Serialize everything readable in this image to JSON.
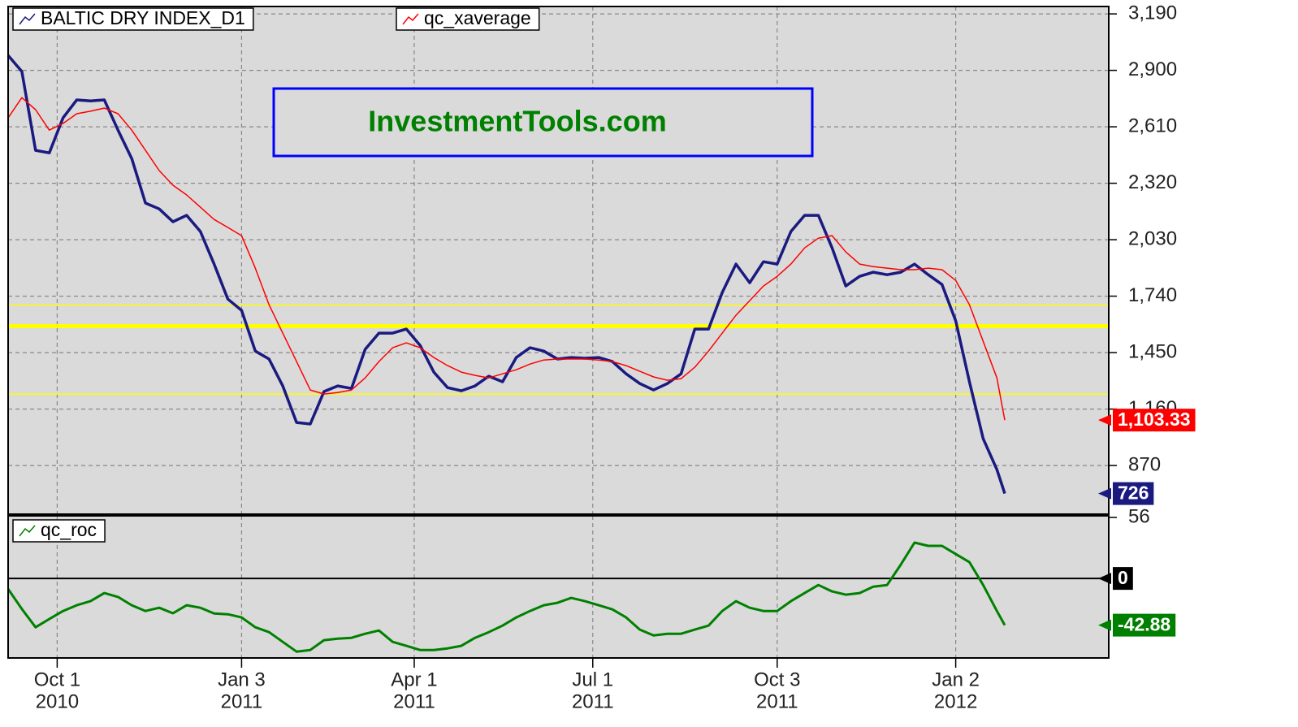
{
  "chart_data": [
    {
      "type": "line",
      "x": [
        "2010-09-06",
        "2010-09-13",
        "2010-09-20",
        "2010-09-27",
        "2010-10-04",
        "2010-10-11",
        "2010-10-18",
        "2010-10-25",
        "2010-11-01",
        "2010-11-08",
        "2010-11-15",
        "2010-11-22",
        "2010-11-29",
        "2010-12-06",
        "2010-12-13",
        "2010-12-20",
        "2010-12-27",
        "2011-01-03",
        "2011-01-10",
        "2011-01-17",
        "2011-01-24",
        "2011-01-31",
        "2011-02-07",
        "2011-02-14",
        "2011-02-21",
        "2011-02-28",
        "2011-03-07",
        "2011-03-14",
        "2011-03-21",
        "2011-03-28",
        "2011-04-04",
        "2011-04-11",
        "2011-04-18",
        "2011-04-25",
        "2011-05-02",
        "2011-05-09",
        "2011-05-16",
        "2011-05-23",
        "2011-05-30",
        "2011-06-06",
        "2011-06-13",
        "2011-06-20",
        "2011-06-27",
        "2011-07-04",
        "2011-07-11",
        "2011-07-18",
        "2011-07-25",
        "2011-08-01",
        "2011-08-08",
        "2011-08-15",
        "2011-08-22",
        "2011-08-29",
        "2011-09-05",
        "2011-09-12",
        "2011-09-19",
        "2011-09-26",
        "2011-10-03",
        "2011-10-10",
        "2011-10-17",
        "2011-10-24",
        "2011-10-31",
        "2011-11-07",
        "2011-11-14",
        "2011-11-21",
        "2011-11-28",
        "2011-12-05",
        "2011-12-12",
        "2011-12-19",
        "2011-12-26",
        "2012-01-02",
        "2012-01-09",
        "2012-01-16",
        "2012-01-23",
        "2012-01-27"
      ],
      "series": [
        {
          "name": "BALTIC DRY INDEX_D1",
          "color": "#1a1a80",
          "width": 3.5,
          "values": [
            2977,
            2894,
            2489,
            2476,
            2656,
            2748,
            2743,
            2748,
            2593,
            2447,
            2218,
            2188,
            2122,
            2155,
            2072,
            1905,
            1725,
            1667,
            1458,
            1417,
            1279,
            1091,
            1083,
            1250,
            1279,
            1266,
            1467,
            1550,
            1550,
            1571,
            1487,
            1350,
            1270,
            1254,
            1279,
            1329,
            1300,
            1425,
            1475,
            1458,
            1417,
            1425,
            1421,
            1425,
            1404,
            1341,
            1291,
            1258,
            1291,
            1341,
            1571,
            1571,
            1759,
            1905,
            1809,
            1917,
            1905,
            2072,
            2155,
            2155,
            1988,
            1792,
            1842,
            1863,
            1850,
            1863,
            1905,
            1850,
            1800,
            1613,
            1300,
            1008,
            849,
            726
          ]
        },
        {
          "name": "qc_xaverage",
          "color": "#ff0000",
          "width": 1.5,
          "last_label": "1,103.33",
          "values": [
            2656,
            2760,
            2698,
            2593,
            2627,
            2677,
            2690,
            2706,
            2677,
            2593,
            2489,
            2385,
            2310,
            2260,
            2197,
            2134,
            2093,
            2051,
            1884,
            1696,
            1550,
            1404,
            1258,
            1237,
            1245,
            1258,
            1320,
            1404,
            1475,
            1500,
            1475,
            1425,
            1383,
            1350,
            1333,
            1320,
            1341,
            1362,
            1391,
            1412,
            1417,
            1417,
            1417,
            1412,
            1404,
            1383,
            1354,
            1325,
            1308,
            1316,
            1375,
            1458,
            1550,
            1642,
            1717,
            1792,
            1842,
            1905,
            1988,
            2038,
            2051,
            1967,
            1905,
            1892,
            1884,
            1876,
            1876,
            1884,
            1876,
            1821,
            1696,
            1508,
            1320,
            1103.33
          ]
        }
      ],
      "xlim": [
        "2010-09-06",
        "2012-03-20"
      ],
      "xticks": [
        {
          "value": "2010-10-01",
          "label": [
            "Oct 1",
            "2010"
          ]
        },
        {
          "value": "2011-01-03",
          "label": [
            "Jan 3",
            "2011"
          ]
        },
        {
          "value": "2011-04-01",
          "label": [
            "Apr 1",
            "2011"
          ]
        },
        {
          "value": "2011-07-01",
          "label": [
            "Jul 1",
            "2011"
          ]
        },
        {
          "value": "2011-10-03",
          "label": [
            "Oct 3",
            "2011"
          ]
        },
        {
          "value": "2012-01-02",
          "label": [
            "Jan 2",
            "2012"
          ]
        }
      ],
      "ylim": [
        620,
        3228
      ],
      "yticks": [
        {
          "value": 3190,
          "label": "3,190"
        },
        {
          "value": 2900,
          "label": "2,900"
        },
        {
          "value": 2610,
          "label": "2,610"
        },
        {
          "value": 2320,
          "label": "2,320"
        },
        {
          "value": 2030,
          "label": "2,030"
        },
        {
          "value": 1740,
          "label": "1,740"
        },
        {
          "value": 1450,
          "label": "1,450"
        },
        {
          "value": 1160,
          "label": "1,160"
        },
        870
      ],
      "hlines": [
        {
          "value": 1694,
          "color": "#ffff00",
          "width": 1.5
        },
        {
          "value": 1586,
          "color": "#ffff00",
          "width": 5
        },
        {
          "value": 1237,
          "color": "#ffff00",
          "width": 1.5
        }
      ],
      "grid": true,
      "annotation": "InvestmentTools.com"
    },
    {
      "type": "line",
      "x": [
        "2010-09-06",
        "2010-09-13",
        "2010-09-20",
        "2010-09-27",
        "2010-10-04",
        "2010-10-11",
        "2010-10-18",
        "2010-10-25",
        "2010-11-01",
        "2010-11-08",
        "2010-11-15",
        "2010-11-22",
        "2010-11-29",
        "2010-12-06",
        "2010-12-13",
        "2010-12-20",
        "2010-12-27",
        "2011-01-03",
        "2011-01-10",
        "2011-01-17",
        "2011-01-24",
        "2011-01-31",
        "2011-02-07",
        "2011-02-14",
        "2011-02-21",
        "2011-02-28",
        "2011-03-07",
        "2011-03-14",
        "2011-03-21",
        "2011-03-28",
        "2011-04-04",
        "2011-04-11",
        "2011-04-18",
        "2011-04-25",
        "2011-05-02",
        "2011-05-09",
        "2011-05-16",
        "2011-05-23",
        "2011-05-30",
        "2011-06-06",
        "2011-06-13",
        "2011-06-20",
        "2011-06-27",
        "2011-07-04",
        "2011-07-11",
        "2011-07-18",
        "2011-07-25",
        "2011-08-01",
        "2011-08-08",
        "2011-08-15",
        "2011-08-22",
        "2011-08-29",
        "2011-09-05",
        "2011-09-12",
        "2011-09-19",
        "2011-09-26",
        "2011-10-03",
        "2011-10-10",
        "2011-10-17",
        "2011-10-24",
        "2011-10-31",
        "2011-11-07",
        "2011-11-14",
        "2011-11-21",
        "2011-11-28",
        "2011-12-05",
        "2011-12-12",
        "2011-12-19",
        "2011-12-26",
        "2012-01-02",
        "2012-01-09",
        "2012-01-16",
        "2012-01-23",
        "2012-01-27"
      ],
      "series": [
        {
          "name": "qc_roc",
          "color": "#008000",
          "width": 3,
          "values": [
            -9.7,
            -28,
            -44.8,
            -37.3,
            -29.9,
            -24.6,
            -20.9,
            -13.4,
            -17,
            -24.6,
            -29.9,
            -26.9,
            -32,
            -24.6,
            -26.9,
            -32.1,
            -32.9,
            -35.8,
            -44.8,
            -49.3,
            -58.2,
            -67.2,
            -65.7,
            -56.7,
            -55.3,
            -54.5,
            -50.8,
            -47.8,
            -58.2,
            -61.9,
            -65.7,
            -65.7,
            -64.2,
            -61.9,
            -54.5,
            -49.3,
            -43.3,
            -35.8,
            -29.9,
            -24.6,
            -22.4,
            -17.9,
            -20.9,
            -24.6,
            -28.4,
            -35.8,
            -47,
            -52.3,
            -50.8,
            -50.8,
            -47,
            -43.3,
            -29.9,
            -20.9,
            -26.9,
            -29.9,
            -29.9,
            -20.9,
            -13.4,
            -6,
            -11.9,
            -14.9,
            -13.4,
            -7.5,
            -6,
            12.7,
            32.9,
            29.9,
            29.9,
            22.4,
            14.9,
            -6,
            -29.9,
            -42.88
          ]
        }
      ],
      "xlim": [
        "2010-09-06",
        "2012-03-20"
      ],
      "ylim": [
        -73,
        57.5
      ],
      "yticks": [
        56
      ],
      "hlines": [
        {
          "value": 0,
          "color": "#000000",
          "width": 2
        }
      ]
    }
  ]
}
